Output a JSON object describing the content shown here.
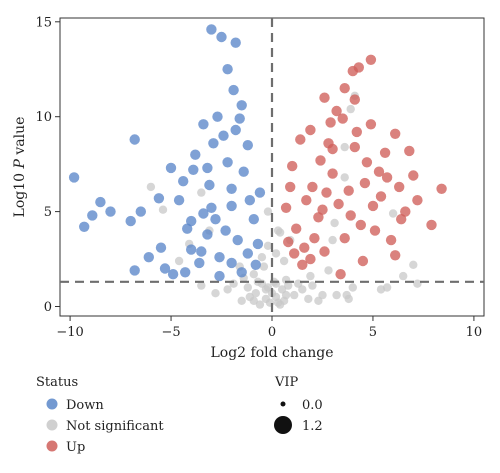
{
  "chart_data": {
    "type": "scatter",
    "title": "",
    "xlabel": "Log2 fold change",
    "ylabel_prefix": "Log10 ",
    "ylabel_italic": "P",
    "ylabel_suffix": " value",
    "xlim": [
      -10.5,
      10.5
    ],
    "ylim": [
      -0.5,
      15.2
    ],
    "x_ticks": [
      -10,
      -5,
      0,
      5,
      10
    ],
    "x_tick_labels": [
      "−10",
      "−5",
      "0",
      "5",
      "10"
    ],
    "y_ticks": [
      0,
      5,
      10,
      15
    ],
    "y_tick_labels": [
      "0",
      "5",
      "10",
      "15"
    ],
    "grid": false,
    "threshold_lines": {
      "x": 0,
      "y": 1.3
    },
    "colors": {
      "Down": "#5b87c9",
      "Not significant": "#c8c8c8",
      "Up": "#cf5f5a",
      "threshold": "#6e6e6e"
    },
    "legend_placement": "bottom-left",
    "status_legend": {
      "title": "Status",
      "items": [
        {
          "label": "Down",
          "color": "#5b87c9"
        },
        {
          "label": "Not significant",
          "color": "#c8c8c8"
        },
        {
          "label": "Up",
          "color": "#cf5f5a"
        }
      ]
    },
    "size_legend": {
      "title": "VIP",
      "items": [
        {
          "label": "0.0",
          "vip": 0.0
        },
        {
          "label": "1.2",
          "vip": 1.2
        }
      ]
    },
    "series": [
      {
        "name": "Down",
        "color": "#5b87c9",
        "points": [
          [
            -9.8,
            6.8
          ],
          [
            -8.5,
            5.5
          ],
          [
            -8.0,
            5.0
          ],
          [
            -8.9,
            4.8
          ],
          [
            -9.3,
            4.2
          ],
          [
            -6.8,
            8.8
          ],
          [
            -5.0,
            7.3
          ],
          [
            -6.5,
            5.0
          ],
          [
            -7.0,
            4.5
          ],
          [
            -5.6,
            5.7
          ],
          [
            -5.5,
            3.1
          ],
          [
            -6.1,
            2.6
          ],
          [
            -6.8,
            1.9
          ],
          [
            -5.3,
            2.0
          ],
          [
            -4.9,
            1.7
          ],
          [
            -3.0,
            14.6
          ],
          [
            -2.5,
            14.2
          ],
          [
            -1.8,
            13.9
          ],
          [
            -2.2,
            12.5
          ],
          [
            -1.9,
            11.4
          ],
          [
            -1.5,
            10.6
          ],
          [
            -1.6,
            9.9
          ],
          [
            -2.7,
            10.0
          ],
          [
            -3.4,
            9.6
          ],
          [
            -1.8,
            9.3
          ],
          [
            -3.2,
            7.3
          ],
          [
            -2.0,
            6.2
          ],
          [
            -3.0,
            5.2
          ],
          [
            -2.3,
            4.0
          ],
          [
            -4.0,
            3.0
          ],
          [
            -3.2,
            3.8
          ],
          [
            -1.2,
            2.8
          ],
          [
            -1.5,
            1.8
          ],
          [
            -2.6,
            1.6
          ],
          [
            -4.3,
            1.8
          ],
          [
            -3.6,
            2.3
          ],
          [
            -0.7,
            3.3
          ],
          [
            -1.1,
            5.6
          ],
          [
            -4.4,
            6.6
          ],
          [
            -3.8,
            8.0
          ],
          [
            -2.9,
            8.6
          ],
          [
            -2.2,
            7.6
          ],
          [
            -4.0,
            4.5
          ],
          [
            -1.4,
            7.1
          ],
          [
            -0.9,
            4.6
          ],
          [
            -2.6,
            2.6
          ],
          [
            -3.4,
            4.9
          ],
          [
            -2.0,
            5.3
          ],
          [
            -4.6,
            5.6
          ],
          [
            -1.2,
            8.5
          ],
          [
            -2.4,
            9.0
          ],
          [
            -3.9,
            7.2
          ],
          [
            -3.1,
            6.4
          ],
          [
            -0.6,
            6.0
          ],
          [
            -0.8,
            2.2
          ],
          [
            -1.7,
            3.5
          ],
          [
            -3.5,
            2.9
          ],
          [
            -4.2,
            4.1
          ],
          [
            -2.8,
            4.6
          ],
          [
            -2.0,
            2.3
          ]
        ]
      },
      {
        "name": "Up",
        "color": "#cf5f5a",
        "points": [
          [
            4.0,
            12.4
          ],
          [
            4.3,
            12.6
          ],
          [
            4.9,
            13.0
          ],
          [
            2.6,
            11.0
          ],
          [
            4.1,
            10.9
          ],
          [
            3.5,
            9.9
          ],
          [
            4.2,
            9.2
          ],
          [
            1.9,
            9.3
          ],
          [
            2.8,
            8.6
          ],
          [
            6.1,
            9.1
          ],
          [
            6.8,
            8.2
          ],
          [
            8.4,
            6.2
          ],
          [
            7.2,
            5.6
          ],
          [
            7.9,
            4.3
          ],
          [
            6.1,
            2.7
          ],
          [
            0.8,
            3.4
          ],
          [
            1.5,
            2.2
          ],
          [
            2.6,
            2.9
          ],
          [
            3.6,
            3.6
          ],
          [
            4.5,
            2.4
          ],
          [
            3.4,
            1.7
          ],
          [
            1.0,
            7.4
          ],
          [
            2.0,
            6.3
          ],
          [
            3.0,
            7.0
          ],
          [
            4.6,
            6.5
          ],
          [
            5.4,
            5.8
          ],
          [
            6.3,
            6.3
          ],
          [
            2.3,
            4.7
          ],
          [
            1.2,
            4.1
          ],
          [
            3.9,
            4.8
          ],
          [
            5.1,
            4.0
          ],
          [
            5.9,
            3.5
          ],
          [
            0.7,
            5.2
          ],
          [
            1.7,
            5.6
          ],
          [
            3.3,
            5.4
          ],
          [
            4.7,
            7.6
          ],
          [
            5.6,
            8.1
          ],
          [
            3.0,
            8.3
          ],
          [
            2.4,
            7.7
          ],
          [
            1.4,
            8.8
          ],
          [
            4.4,
            4.3
          ],
          [
            5.3,
            7.1
          ],
          [
            6.6,
            5.0
          ],
          [
            2.1,
            3.6
          ],
          [
            3.8,
            6.1
          ],
          [
            1.9,
            2.5
          ],
          [
            0.9,
            6.3
          ],
          [
            4.9,
            9.6
          ],
          [
            3.6,
            11.5
          ],
          [
            2.9,
            9.7
          ],
          [
            5.7,
            6.8
          ],
          [
            7.0,
            6.9
          ],
          [
            2.7,
            6.0
          ],
          [
            1.6,
            3.1
          ],
          [
            6.4,
            4.6
          ],
          [
            4.1,
            8.4
          ],
          [
            3.2,
            10.3
          ],
          [
            5.0,
            5.3
          ],
          [
            1.1,
            2.8
          ],
          [
            2.5,
            5.1
          ]
        ]
      },
      {
        "name": "Not significant",
        "color": "#c8c8c8",
        "points": [
          [
            -1.2,
            1.0
          ],
          [
            -0.8,
            0.7
          ],
          [
            -0.5,
            1.2
          ],
          [
            -0.3,
            0.4
          ],
          [
            0.2,
            0.5
          ],
          [
            0.5,
            0.9
          ],
          [
            0.8,
            1.1
          ],
          [
            1.1,
            0.6
          ],
          [
            -1.5,
            0.3
          ],
          [
            -0.2,
            1.0
          ],
          [
            0.3,
            0.2
          ],
          [
            0.6,
            0.3
          ],
          [
            1.5,
            0.9
          ],
          [
            2.0,
            1.1
          ],
          [
            2.5,
            0.6
          ],
          [
            -2.2,
            0.9
          ],
          [
            -1.9,
            1.2
          ],
          [
            -2.8,
            0.7
          ],
          [
            0.0,
            0.7
          ],
          [
            0.2,
            1.2
          ],
          [
            -0.6,
            0.1
          ],
          [
            1.8,
            0.4
          ],
          [
            3.2,
            0.6
          ],
          [
            4.0,
            1.0
          ],
          [
            3.8,
            0.4
          ],
          [
            -3.5,
            1.1
          ],
          [
            -0.9,
            0.3
          ],
          [
            -0.3,
            0.9
          ],
          [
            0.1,
            1.3
          ],
          [
            0.4,
            0.1
          ],
          [
            -0.1,
            0.2
          ],
          [
            1.3,
            1.2
          ],
          [
            2.3,
            0.3
          ],
          [
            -1.1,
            0.5
          ],
          [
            0.7,
            0.6
          ],
          [
            -0.7,
            1.3
          ],
          [
            -0.4,
            2.1
          ],
          [
            -0.2,
            3.2
          ],
          [
            0.4,
            3.9
          ],
          [
            0.2,
            2.8
          ],
          [
            0.6,
            2.4
          ],
          [
            0.9,
            3.5
          ],
          [
            -6.0,
            6.3
          ],
          [
            -5.4,
            5.1
          ],
          [
            -3.5,
            6.0
          ],
          [
            3.9,
            10.4
          ],
          [
            4.1,
            11.1
          ],
          [
            3.6,
            8.4
          ],
          [
            3.6,
            6.8
          ],
          [
            6.0,
            4.9
          ],
          [
            3.1,
            4.4
          ],
          [
            3.0,
            3.5
          ],
          [
            -4.1,
            3.3
          ],
          [
            -3.1,
            4.0
          ],
          [
            -4.6,
            2.4
          ],
          [
            5.4,
            0.9
          ],
          [
            5.7,
            1.0
          ],
          [
            7.0,
            2.2
          ],
          [
            7.2,
            1.2
          ],
          [
            6.5,
            1.6
          ],
          [
            3.7,
            0.6
          ],
          [
            1.9,
            1.6
          ],
          [
            -1.6,
            2.1
          ],
          [
            -0.2,
            5.0
          ],
          [
            0.3,
            4.0
          ],
          [
            -0.5,
            2.6
          ],
          [
            0.7,
            1.4
          ],
          [
            -0.9,
            1.7
          ],
          [
            -1.4,
            1.5
          ],
          [
            2.8,
            1.9
          ]
        ]
      }
    ]
  }
}
